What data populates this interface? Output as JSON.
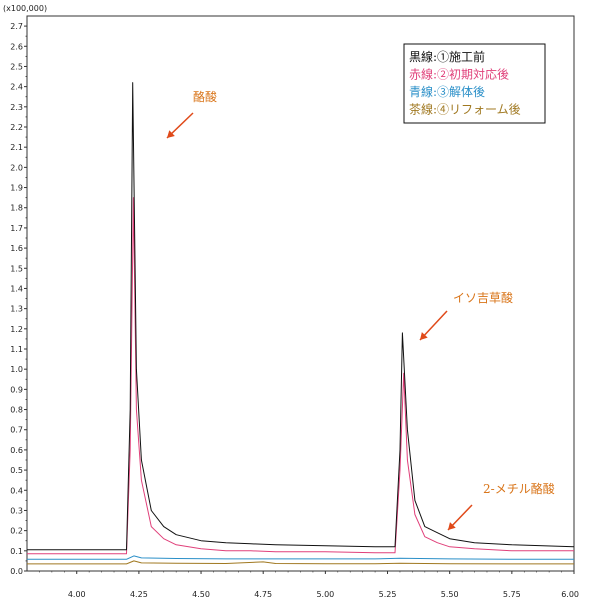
{
  "chart_data": {
    "type": "line",
    "title": "",
    "xlabel": "",
    "ylabel": "",
    "y_scale_note": "(x100,000)",
    "xlim": [
      3.8,
      6.0
    ],
    "ylim": [
      0,
      2.75
    ],
    "x_ticks": [
      "4.00",
      "4.25",
      "4.50",
      "4.75",
      "5.00",
      "5.25",
      "5.50",
      "5.75",
      "6.00"
    ],
    "y_ticks": [
      "0.0",
      "0.1",
      "0.2",
      "0.3",
      "0.4",
      "0.5",
      "0.6",
      "0.7",
      "0.8",
      "0.9",
      "1.0",
      "1.1",
      "1.2",
      "1.3",
      "1.4",
      "1.5",
      "1.6",
      "1.7",
      "1.8",
      "1.9",
      "2.0",
      "2.1",
      "2.2",
      "2.3",
      "2.4",
      "2.5",
      "2.6",
      "2.7"
    ],
    "grid": false,
    "legend_position": "top-right",
    "legend": [
      {
        "label": "黒線:①施工前",
        "color": "#111111"
      },
      {
        "label": "赤線:②初期対応後",
        "color": "#e0407a"
      },
      {
        "label": "青線:③解体後",
        "color": "#2a8fc8"
      },
      {
        "label": "茶線:④リフォーム後",
        "color": "#a07820"
      }
    ],
    "annotations": [
      {
        "text": "酪酸",
        "x": 4.23,
        "y": 2.42
      },
      {
        "text": "イソ吉草酸",
        "x": 5.31,
        "y": 1.18
      },
      {
        "text": "2-メチル酪酸",
        "x": 5.47,
        "y": 0.18
      }
    ],
    "series": [
      {
        "name": "黒線:①施工前",
        "color": "#111111",
        "x": [
          3.8,
          4.0,
          4.2,
          4.215,
          4.225,
          4.24,
          4.26,
          4.3,
          4.35,
          4.4,
          4.5,
          4.6,
          4.7,
          4.8,
          5.0,
          5.2,
          5.28,
          5.3,
          5.31,
          5.33,
          5.36,
          5.4,
          5.45,
          5.5,
          5.6,
          5.75,
          6.0
        ],
        "y": [
          0.105,
          0.105,
          0.105,
          0.8,
          2.42,
          1.0,
          0.55,
          0.3,
          0.22,
          0.18,
          0.15,
          0.14,
          0.135,
          0.13,
          0.125,
          0.12,
          0.12,
          0.6,
          1.18,
          0.7,
          0.35,
          0.22,
          0.19,
          0.16,
          0.14,
          0.13,
          0.12
        ]
      },
      {
        "name": "赤線:②初期対応後",
        "color": "#e0407a",
        "x": [
          3.8,
          4.0,
          4.2,
          4.215,
          4.228,
          4.24,
          4.26,
          4.3,
          4.35,
          4.4,
          4.5,
          4.6,
          4.7,
          4.8,
          5.0,
          5.2,
          5.28,
          5.3,
          5.315,
          5.33,
          5.36,
          5.4,
          5.45,
          5.5,
          5.6,
          5.75,
          6.0
        ],
        "y": [
          0.085,
          0.085,
          0.085,
          0.6,
          1.85,
          0.8,
          0.45,
          0.22,
          0.16,
          0.13,
          0.11,
          0.1,
          0.1,
          0.095,
          0.095,
          0.09,
          0.09,
          0.5,
          0.98,
          0.55,
          0.28,
          0.17,
          0.14,
          0.12,
          0.11,
          0.1,
          0.1
        ]
      },
      {
        "name": "青線:③解体後",
        "color": "#2a8fc8",
        "x": [
          3.8,
          4.0,
          4.2,
          4.23,
          4.26,
          4.4,
          4.6,
          4.8,
          5.0,
          5.2,
          5.3,
          5.5,
          5.75,
          6.0
        ],
        "y": [
          0.058,
          0.058,
          0.058,
          0.075,
          0.065,
          0.062,
          0.06,
          0.06,
          0.06,
          0.06,
          0.063,
          0.06,
          0.058,
          0.058
        ]
      },
      {
        "name": "茶線:④リフォーム後",
        "color": "#a07820",
        "x": [
          3.8,
          4.0,
          4.2,
          4.23,
          4.26,
          4.4,
          4.6,
          4.75,
          4.8,
          5.0,
          5.2,
          5.3,
          5.5,
          5.75,
          6.0
        ],
        "y": [
          0.035,
          0.035,
          0.035,
          0.05,
          0.04,
          0.038,
          0.037,
          0.045,
          0.037,
          0.036,
          0.036,
          0.038,
          0.036,
          0.035,
          0.035
        ]
      }
    ]
  }
}
